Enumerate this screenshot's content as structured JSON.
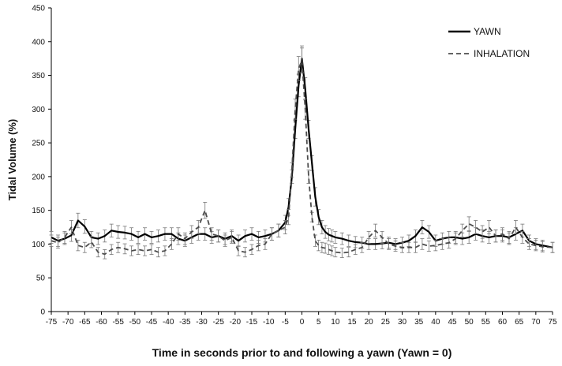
{
  "chart_data": {
    "type": "line",
    "title": "",
    "xlabel": "Time in seconds prior to and following a yawn (Yawn = 0)",
    "ylabel": "Tidal Volume (%)",
    "xlim": [
      -75,
      75
    ],
    "ylim": [
      0,
      450
    ],
    "x_ticks": [
      "-75",
      "-70",
      "-65",
      "-60",
      "-55",
      "-50",
      "-45",
      "-40",
      "-35",
      "-30",
      "-25",
      "-20",
      "-15",
      "-10",
      "-5",
      "0",
      "5",
      "10",
      "15",
      "20",
      "25",
      "30",
      "35",
      "40",
      "45",
      "50",
      "55",
      "60",
      "65",
      "70",
      "75"
    ],
    "y_ticks": [
      "0",
      "50",
      "100",
      "150",
      "200",
      "250",
      "300",
      "350",
      "400",
      "450"
    ],
    "grid": false,
    "legend_position": "top-right",
    "series": [
      {
        "name": "YAWN",
        "style": "solid",
        "color": "#000000",
        "x": [
          -75,
          -73,
          -71,
          -69,
          -67,
          -65,
          -63,
          -61,
          -59,
          -57,
          -55,
          -53,
          -51,
          -49,
          -47,
          -45,
          -43,
          -41,
          -39,
          -37,
          -35,
          -33,
          -31,
          -29,
          -27,
          -25,
          -23,
          -21,
          -19,
          -17,
          -15,
          -13,
          -11,
          -9,
          -7,
          -5,
          -4,
          -3,
          -2,
          -1,
          0,
          1,
          2,
          3,
          4,
          5,
          6,
          7,
          8,
          9,
          10,
          12,
          14,
          16,
          18,
          20,
          22,
          24,
          26,
          28,
          30,
          32,
          34,
          36,
          38,
          40,
          42,
          44,
          46,
          48,
          50,
          52,
          54,
          56,
          58,
          60,
          62,
          64,
          66,
          68,
          70,
          72,
          75
        ],
        "values": [
          110,
          105,
          108,
          113,
          135,
          126,
          110,
          108,
          112,
          120,
          118,
          117,
          115,
          110,
          115,
          110,
          112,
          115,
          115,
          108,
          105,
          110,
          115,
          115,
          110,
          112,
          108,
          112,
          105,
          112,
          115,
          110,
          112,
          115,
          120,
          132,
          155,
          200,
          270,
          335,
          375,
          330,
          270,
          220,
          170,
          140,
          125,
          118,
          114,
          112,
          110,
          108,
          105,
          103,
          102,
          100,
          100,
          101,
          102,
          100,
          102,
          105,
          112,
          125,
          118,
          105,
          108,
          110,
          110,
          108,
          110,
          115,
          112,
          110,
          112,
          112,
          110,
          115,
          120,
          105,
          100,
          98,
          95
        ]
      },
      {
        "name": "INHALATION",
        "style": "dashed",
        "color": "#4d4d4d",
        "x": [
          -75,
          -73,
          -71,
          -69,
          -67,
          -65,
          -63,
          -61,
          -59,
          -57,
          -55,
          -53,
          -51,
          -49,
          -47,
          -45,
          -43,
          -41,
          -39,
          -37,
          -35,
          -33,
          -31,
          -29,
          -27,
          -25,
          -23,
          -21,
          -19,
          -17,
          -15,
          -13,
          -11,
          -9,
          -7,
          -5,
          -4,
          -3,
          -2,
          -1,
          0,
          1,
          2,
          3,
          4,
          5,
          6,
          7,
          8,
          9,
          10,
          12,
          14,
          16,
          18,
          20,
          22,
          24,
          26,
          28,
          30,
          32,
          34,
          36,
          38,
          40,
          42,
          44,
          46,
          48,
          50,
          52,
          54,
          56,
          58,
          60,
          62,
          64,
          66,
          68,
          70,
          72,
          75
        ],
        "values": [
          105,
          102,
          110,
          125,
          98,
          95,
          103,
          88,
          85,
          92,
          95,
          93,
          90,
          92,
          90,
          92,
          88,
          90,
          100,
          115,
          108,
          118,
          125,
          150,
          115,
          112,
          105,
          110,
          90,
          88,
          92,
          98,
          100,
          115,
          120,
          125,
          140,
          210,
          300,
          360,
          372,
          300,
          200,
          140,
          105,
          98,
          95,
          94,
          92,
          90,
          88,
          87,
          88,
          92,
          95,
          110,
          120,
          110,
          100,
          97,
          95,
          95,
          95,
          100,
          97,
          98,
          100,
          102,
          108,
          120,
          130,
          125,
          118,
          125,
          112,
          115,
          108,
          125,
          110,
          100,
          98,
          96,
          95
        ]
      }
    ]
  }
}
